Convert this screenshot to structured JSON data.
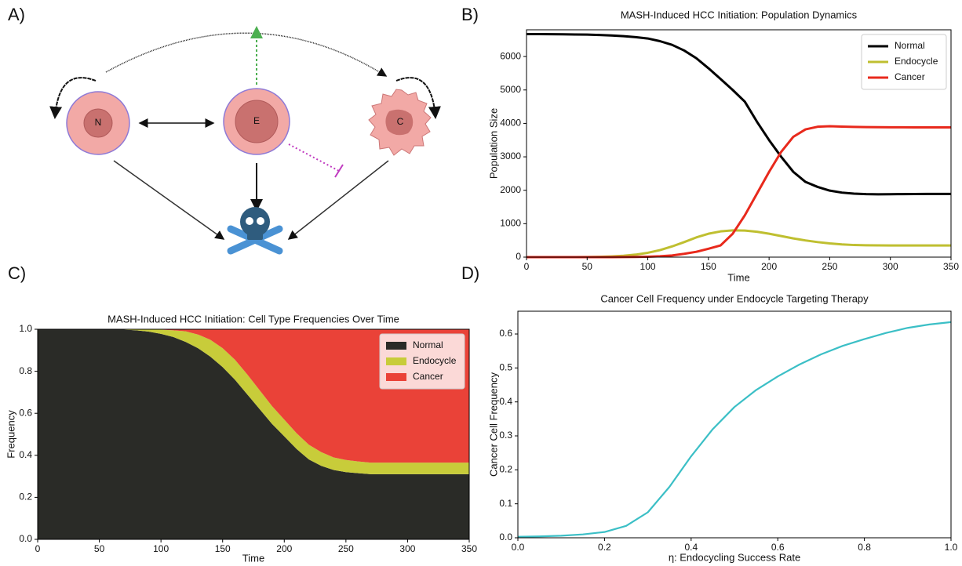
{
  "panel_labels": [
    "A)",
    "B)",
    "C)",
    "D)"
  ],
  "diagram": {
    "nodes": [
      {
        "label": "N"
      },
      {
        "label": "E"
      },
      {
        "label": "C"
      }
    ]
  },
  "chart_data": [
    {
      "type": "line",
      "title": "MASH-Induced HCC Initiation: Population Dynamics",
      "xlabel": "Time",
      "ylabel": "Population Size",
      "x": [
        0,
        10,
        20,
        30,
        40,
        50,
        60,
        70,
        80,
        90,
        100,
        110,
        120,
        130,
        140,
        150,
        160,
        170,
        180,
        190,
        200,
        210,
        220,
        230,
        240,
        250,
        260,
        270,
        280,
        290,
        300,
        310,
        320,
        330,
        340,
        350
      ],
      "series": [
        {
          "name": "Normal",
          "color": "#000000",
          "values": [
            6670,
            6670,
            6668,
            6665,
            6660,
            6655,
            6645,
            6630,
            6610,
            6580,
            6540,
            6460,
            6350,
            6180,
            5950,
            5650,
            5330,
            5000,
            4650,
            4050,
            3500,
            3000,
            2550,
            2250,
            2100,
            1990,
            1930,
            1900,
            1885,
            1880,
            1882,
            1885,
            1888,
            1890,
            1890,
            1890
          ]
        },
        {
          "name": "Endocycle",
          "color": "#bfbf30",
          "values": [
            0,
            0,
            0,
            0,
            1,
            3,
            8,
            20,
            40,
            75,
            130,
            210,
            320,
            450,
            590,
            700,
            770,
            800,
            795,
            760,
            700,
            630,
            560,
            500,
            450,
            410,
            380,
            362,
            355,
            352,
            350,
            350,
            350,
            350,
            350,
            350
          ]
        },
        {
          "name": "Cancer",
          "color": "#e8291c",
          "values": [
            0,
            0,
            0,
            0,
            0,
            0,
            0,
            1,
            3,
            6,
            12,
            25,
            50,
            100,
            160,
            250,
            350,
            700,
            1250,
            1900,
            2550,
            3150,
            3600,
            3820,
            3900,
            3915,
            3905,
            3895,
            3890,
            3888,
            3885,
            3883,
            3882,
            3880,
            3880,
            3880
          ]
        }
      ],
      "xlim": [
        0,
        350
      ],
      "xticks": [
        0,
        50,
        100,
        150,
        200,
        250,
        300,
        350
      ],
      "ylim": [
        0,
        6800
      ],
      "yticks": [
        0,
        1000,
        2000,
        3000,
        4000,
        5000,
        6000
      ],
      "legend": "upper right"
    },
    {
      "type": "area",
      "stacked": true,
      "title": "MASH-Induced HCC Initiation: Cell Type Frequencies Over Time",
      "xlabel": "Time",
      "ylabel": "Frequency",
      "x": [
        0,
        10,
        20,
        30,
        40,
        50,
        60,
        70,
        80,
        90,
        100,
        110,
        120,
        130,
        140,
        150,
        160,
        170,
        180,
        190,
        200,
        210,
        220,
        230,
        240,
        250,
        260,
        270,
        280,
        290,
        300,
        310,
        320,
        330,
        340,
        350
      ],
      "series": [
        {
          "name": "Normal",
          "color": "#2a2b27",
          "values": [
            1,
            1,
            1,
            1,
            1,
            1,
            0.999,
            0.998,
            0.995,
            0.989,
            0.978,
            0.963,
            0.94,
            0.91,
            0.87,
            0.82,
            0.76,
            0.69,
            0.62,
            0.55,
            0.49,
            0.43,
            0.38,
            0.35,
            0.33,
            0.32,
            0.315,
            0.31,
            0.31,
            0.31,
            0.31,
            0.31,
            0.31,
            0.31,
            0.31,
            0.31
          ]
        },
        {
          "name": "Endocycle",
          "color": "#c8cc3a",
          "values": [
            0,
            0,
            0,
            0,
            0,
            0,
            0.001,
            0.002,
            0.005,
            0.011,
            0.02,
            0.032,
            0.05,
            0.065,
            0.08,
            0.09,
            0.095,
            0.095,
            0.09,
            0.085,
            0.08,
            0.075,
            0.07,
            0.065,
            0.06,
            0.058,
            0.056,
            0.055,
            0.055,
            0.055,
            0.055,
            0.055,
            0.055,
            0.055,
            0.055,
            0.055
          ]
        },
        {
          "name": "Cancer",
          "color": "#ea4238",
          "values": [
            0,
            0,
            0,
            0,
            0,
            0,
            0,
            0,
            0,
            0,
            0.002,
            0.005,
            0.01,
            0.025,
            0.05,
            0.09,
            0.145,
            0.215,
            0.29,
            0.365,
            0.43,
            0.495,
            0.55,
            0.585,
            0.61,
            0.622,
            0.629,
            0.635,
            0.635,
            0.635,
            0.635,
            0.635,
            0.635,
            0.635,
            0.635,
            0.635
          ]
        }
      ],
      "xlim": [
        0,
        350
      ],
      "xticks": [
        0,
        50,
        100,
        150,
        200,
        250,
        300,
        350
      ],
      "ylim": [
        0,
        1
      ],
      "yticks": [
        {
          "value": 0,
          "label": "0.0"
        },
        0.2,
        0.4,
        0.6,
        0.8,
        {
          "value": 1,
          "label": "1.0"
        }
      ],
      "legend": "upper right"
    },
    {
      "type": "line",
      "title": "Cancer Cell Frequency under Endocycle Targeting Therapy",
      "xlabel": "η: Endocycling Success Rate",
      "ylabel": "Cancer Cell Frequency",
      "x": [
        0,
        0.05,
        0.1,
        0.15,
        0.2,
        0.25,
        0.3,
        0.35,
        0.4,
        0.45,
        0.5,
        0.55,
        0.6,
        0.65,
        0.7,
        0.75,
        0.8,
        0.85,
        0.9,
        0.95,
        1
      ],
      "values": [
        0.003,
        0.004,
        0.006,
        0.01,
        0.017,
        0.035,
        0.075,
        0.15,
        0.24,
        0.32,
        0.385,
        0.435,
        0.475,
        0.51,
        0.54,
        0.565,
        0.585,
        0.603,
        0.618,
        0.628,
        0.635
      ],
      "color": "#3bbfc6",
      "xlim": [
        0,
        1
      ],
      "xticks": [
        {
          "value": 0,
          "label": "0.0"
        },
        0.2,
        0.4,
        0.6,
        0.8,
        {
          "value": 1,
          "label": "1.0"
        }
      ],
      "ylim": [
        0,
        0.667
      ],
      "yticks": [
        {
          "value": 0,
          "label": "0.0"
        },
        0.1,
        0.2,
        0.3,
        0.4,
        0.5,
        0.6
      ]
    }
  ]
}
